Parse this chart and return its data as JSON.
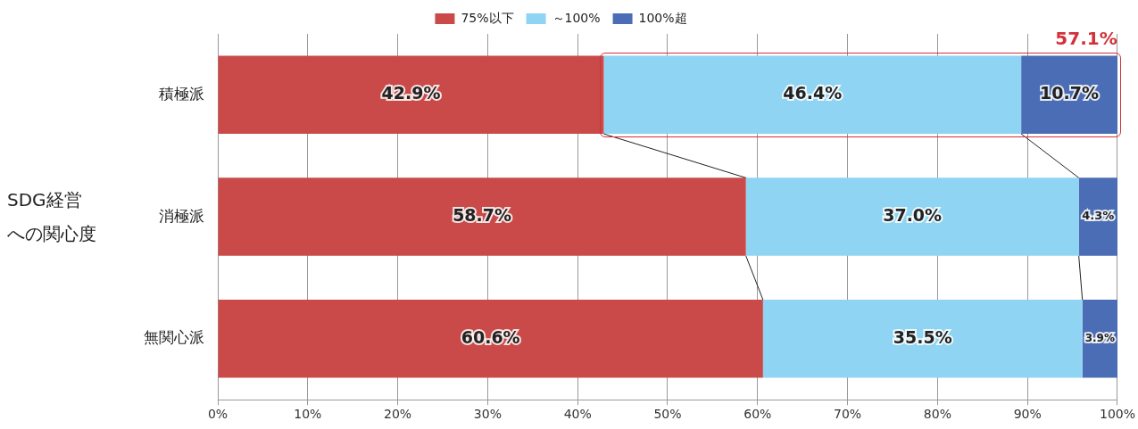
{
  "chart_data": {
    "type": "bar",
    "orientation": "horizontal",
    "stacked": true,
    "ylabel": "SDG経営への関心度",
    "categories": [
      "積極派",
      "消極派",
      "無関心派"
    ],
    "series": [
      {
        "name": "75%以下",
        "color": "#c94a48",
        "values": [
          42.9,
          58.7,
          60.6
        ],
        "value_labels": [
          "42.9%",
          "58.7%",
          "60.6%"
        ]
      },
      {
        "name": "～100%",
        "color": "#8fd4f2",
        "values": [
          46.4,
          37.0,
          35.5
        ],
        "value_labels": [
          "46.4%",
          "37.0%",
          "35.5%"
        ]
      },
      {
        "name": "100%超",
        "color": "#4a6db5",
        "values": [
          10.7,
          4.3,
          3.9
        ],
        "value_labels": [
          "10.7%",
          "4.3%",
          "3.9%"
        ]
      }
    ],
    "xlim": [
      0,
      100
    ],
    "xticks": [
      {
        "value": 0,
        "label": "0%"
      },
      {
        "value": 10,
        "label": "10%"
      },
      {
        "value": 20,
        "label": "20%"
      },
      {
        "value": 30,
        "label": "30%"
      },
      {
        "value": 40,
        "label": "40%"
      },
      {
        "value": 50,
        "label": "50%"
      },
      {
        "value": 60,
        "label": "60%"
      },
      {
        "value": 70,
        "label": "70%"
      },
      {
        "value": 80,
        "label": "80%"
      },
      {
        "value": 90,
        "label": "90%"
      },
      {
        "value": 100,
        "label": "100%"
      }
    ],
    "grid": "x",
    "legend": "top",
    "annotations": [
      "57.1%"
    ]
  }
}
